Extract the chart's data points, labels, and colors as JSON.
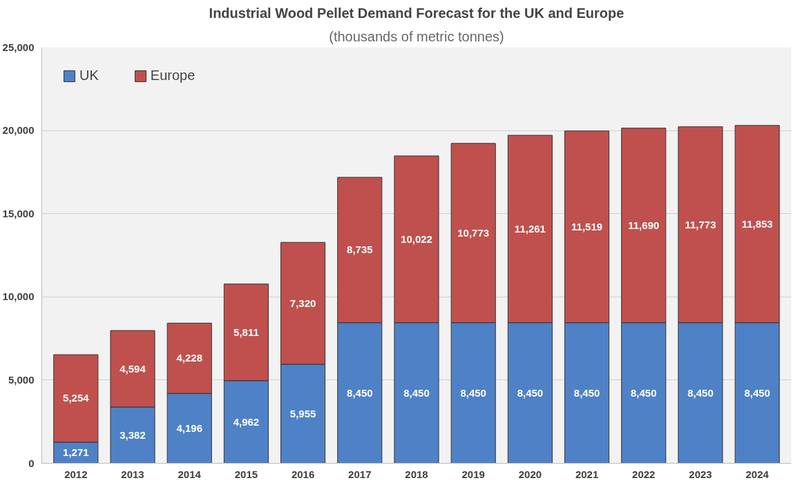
{
  "chart_data": {
    "type": "bar",
    "title": "Industrial Wood Pellet Demand Forecast for the UK and Europe",
    "subtitle": "(thousands of metric tonnes)",
    "categories": [
      "2012",
      "2013",
      "2014",
      "2015",
      "2016",
      "2017",
      "2018",
      "2019",
      "2020",
      "2021",
      "2022",
      "2023",
      "2024"
    ],
    "stacked": true,
    "series": [
      {
        "name": "UK",
        "color": "#4f81c7",
        "values": [
          1271,
          3382,
          4196,
          4962,
          5955,
          8450,
          8450,
          8450,
          8450,
          8450,
          8450,
          8450,
          8450
        ],
        "value_labels": [
          "1,271",
          "3,382",
          "4,196",
          "4,962",
          "5,955",
          "8,450",
          "8,450",
          "8,450",
          "8,450",
          "8,450",
          "8,450",
          "8,450",
          "8,450"
        ]
      },
      {
        "name": "Europe",
        "color": "#c0504d",
        "values": [
          5254,
          4594,
          4228,
          5811,
          7320,
          8735,
          10022,
          10773,
          11261,
          11519,
          11690,
          11773,
          11853
        ],
        "value_labels": [
          "5,254",
          "4,594",
          "4,228",
          "5,811",
          "7,320",
          "8,735",
          "10,022",
          "10,773",
          "11,261",
          "11,519",
          "11,690",
          "11,773",
          "11,853"
        ]
      }
    ],
    "ylim": [
      0,
      25000
    ],
    "yticks": [
      {
        "value": 0,
        "label": "0"
      },
      {
        "value": 5000,
        "label": "5,000"
      },
      {
        "value": 10000,
        "label": "10,000"
      },
      {
        "value": 15000,
        "label": "15,000"
      },
      {
        "value": 20000,
        "label": "20,000"
      },
      {
        "value": 25000,
        "label": "25,000"
      }
    ],
    "grid": "y",
    "legend": "top left"
  }
}
